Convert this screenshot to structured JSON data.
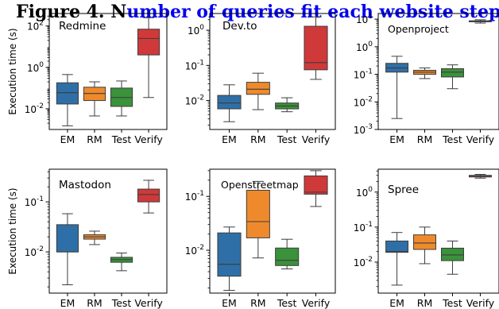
{
  "figure": {
    "title_black": "Figure 4. N",
    "title_blue": "umber of queries fit each website step",
    "title_blue_color": "#0000ee",
    "ylabel": "Execution time (s)"
  },
  "colors": {
    "EM": "#2f6fa7",
    "RM": "#ef8a2c",
    "Test": "#3a923a",
    "Verify": "#d0393a"
  },
  "chart_data": [
    {
      "type": "box",
      "title": "Redmine",
      "scale": "log",
      "ylim": [
        0.001,
        400
      ],
      "yticks": [
        0.01,
        1,
        100
      ],
      "ytick_labels": [
        "10^-2",
        "10^0",
        "10^2"
      ],
      "ylabel": "Execution time (s)",
      "categories": [
        "EM",
        "RM",
        "Test",
        "Verify"
      ],
      "boxes": [
        {
          "min": 0.0015,
          "q1": 0.017,
          "median": 0.06,
          "q3": 0.18,
          "max": 0.45
        },
        {
          "min": 0.0045,
          "q1": 0.025,
          "median": 0.055,
          "q3": 0.11,
          "max": 0.2
        },
        {
          "min": 0.0045,
          "q1": 0.013,
          "median": 0.035,
          "q3": 0.1,
          "max": 0.22
        },
        {
          "min": 0.035,
          "q1": 4,
          "median": 25,
          "q3": 70,
          "max": 250
        }
      ]
    },
    {
      "type": "box",
      "title": "Dev.to",
      "scale": "log",
      "ylim": [
        0.0015,
        3
      ],
      "yticks": [
        0.01,
        0.1,
        1
      ],
      "ytick_labels": [
        "10^-2",
        "10^-1",
        "10^0"
      ],
      "ylabel": "",
      "categories": [
        "EM",
        "RM",
        "Test",
        "Verify"
      ],
      "boxes": [
        {
          "min": 0.0025,
          "q1": 0.0058,
          "median": 0.0085,
          "q3": 0.014,
          "max": 0.028
        },
        {
          "min": 0.0055,
          "q1": 0.015,
          "median": 0.021,
          "q3": 0.033,
          "max": 0.06
        },
        {
          "min": 0.0048,
          "q1": 0.0058,
          "median": 0.007,
          "q3": 0.0085,
          "max": 0.012
        },
        {
          "min": 0.04,
          "q1": 0.075,
          "median": 0.12,
          "q3": 1.3,
          "max": 2.4
        }
      ]
    },
    {
      "type": "box",
      "title": "Openproject",
      "scale": "log",
      "ylim": [
        0.001,
        16
      ],
      "yticks": [
        0.001,
        0.01,
        0.1,
        1,
        10
      ],
      "ytick_labels": [
        "10^-3",
        "10^-2",
        "10^-1",
        "10^0",
        "10^1"
      ],
      "ylabel": "",
      "categories": [
        "EM",
        "RM",
        "Test",
        "Verify"
      ],
      "boxes": [
        {
          "min": 0.0025,
          "q1": 0.12,
          "median": 0.17,
          "q3": 0.25,
          "max": 0.45
        },
        {
          "min": 0.07,
          "q1": 0.1,
          "median": 0.12,
          "q3": 0.14,
          "max": 0.17
        },
        {
          "min": 0.03,
          "q1": 0.08,
          "median": 0.12,
          "q3": 0.16,
          "max": 0.22
        },
        {
          "min": 7.2,
          "q1": 8.0,
          "median": 8.3,
          "q3": 8.7,
          "max": 9.5
        }
      ]
    },
    {
      "type": "box",
      "title": "Mastodon",
      "scale": "log",
      "ylim": [
        0.0015,
        0.45
      ],
      "yticks": [
        0.01,
        0.1
      ],
      "ytick_labels": [
        "10^-2",
        "10^-1"
      ],
      "ylabel": "Execution time (s)",
      "categories": [
        "EM",
        "RM",
        "Test",
        "Verify"
      ],
      "boxes": [
        {
          "min": 0.0022,
          "q1": 0.01,
          "median": 0.01,
          "q3": 0.035,
          "max": 0.058
        },
        {
          "min": 0.014,
          "q1": 0.018,
          "median": 0.02,
          "q3": 0.022,
          "max": 0.026
        },
        {
          "min": 0.0042,
          "q1": 0.0062,
          "median": 0.007,
          "q3": 0.0078,
          "max": 0.0095
        },
        {
          "min": 0.06,
          "q1": 0.1,
          "median": 0.14,
          "q3": 0.18,
          "max": 0.27
        }
      ]
    },
    {
      "type": "box",
      "title": "Openstreetmap",
      "scale": "log",
      "ylim": [
        0.0016,
        0.32
      ],
      "yticks": [
        0.01,
        0.1
      ],
      "ytick_labels": [
        "10^-2",
        "10^-1"
      ],
      "ylabel": "",
      "categories": [
        "EM",
        "RM",
        "Test",
        "Verify"
      ],
      "boxes": [
        {
          "min": 0.0018,
          "q1": 0.0033,
          "median": 0.0055,
          "q3": 0.021,
          "max": 0.027
        },
        {
          "min": 0.0072,
          "q1": 0.017,
          "median": 0.034,
          "q3": 0.13,
          "max": 0.19
        },
        {
          "min": 0.0045,
          "q1": 0.0052,
          "median": 0.0065,
          "q3": 0.011,
          "max": 0.016
        },
        {
          "min": 0.065,
          "q1": 0.11,
          "median": 0.12,
          "q3": 0.24,
          "max": 0.3
        }
      ]
    },
    {
      "type": "box",
      "title": "Spree",
      "scale": "log",
      "ylim": [
        0.0013,
        4.5
      ],
      "yticks": [
        0.01,
        0.1,
        1
      ],
      "ytick_labels": [
        "10^-2",
        "10^-1",
        "10^0"
      ],
      "ylabel": "",
      "categories": [
        "EM",
        "RM",
        "Test",
        "Verify"
      ],
      "boxes": [
        {
          "min": 0.0022,
          "q1": 0.019,
          "median": 0.02,
          "q3": 0.04,
          "max": 0.07
        },
        {
          "min": 0.009,
          "q1": 0.023,
          "median": 0.035,
          "q3": 0.06,
          "max": 0.1
        },
        {
          "min": 0.0045,
          "q1": 0.011,
          "median": 0.016,
          "q3": 0.025,
          "max": 0.04
        },
        {
          "min": 2.5,
          "q1": 2.7,
          "median": 2.85,
          "q3": 3.0,
          "max": 3.2
        }
      ]
    }
  ]
}
